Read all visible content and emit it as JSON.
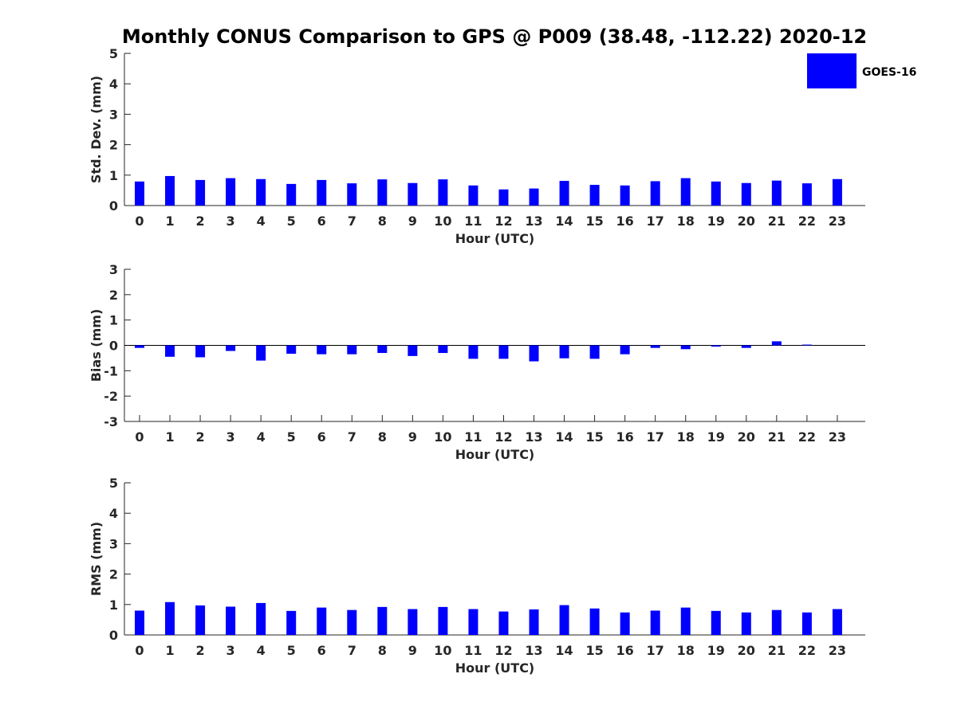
{
  "title": "Monthly CONUS Comparison to GPS @ P009 (38.48, -112.22) 2020-12",
  "legend": {
    "label": "GOES-16",
    "color": "#0000ff",
    "placement": "top-right"
  },
  "chart_data": [
    {
      "type": "bar",
      "xlabel": "Hour (UTC)",
      "ylabel": "Std. Dev. (mm)",
      "ylim": [
        0,
        5
      ],
      "yticks": [
        "0",
        "1",
        "2",
        "3",
        "4",
        "5"
      ],
      "categories": [
        "0",
        "1",
        "2",
        "3",
        "4",
        "5",
        "6",
        "7",
        "8",
        "9",
        "10",
        "11",
        "12",
        "13",
        "14",
        "15",
        "16",
        "17",
        "18",
        "19",
        "20",
        "21",
        "22",
        "23"
      ],
      "series": [
        {
          "name": "GOES-16",
          "color": "#0000ff",
          "values": [
            0.79,
            0.97,
            0.84,
            0.9,
            0.87,
            0.71,
            0.84,
            0.73,
            0.86,
            0.74,
            0.86,
            0.66,
            0.53,
            0.56,
            0.81,
            0.68,
            0.66,
            0.8,
            0.9,
            0.79,
            0.74,
            0.82,
            0.73,
            0.87
          ]
        }
      ]
    },
    {
      "type": "bar",
      "xlabel": "Hour (UTC)",
      "ylabel": "Bias (mm)",
      "ylim": [
        -3,
        3
      ],
      "yticks": [
        "-3",
        "-2",
        "-1",
        "0",
        "1",
        "2",
        "3"
      ],
      "categories": [
        "0",
        "1",
        "2",
        "3",
        "4",
        "5",
        "6",
        "7",
        "8",
        "9",
        "10",
        "11",
        "12",
        "13",
        "14",
        "15",
        "16",
        "17",
        "18",
        "19",
        "20",
        "21",
        "22",
        "23"
      ],
      "series": [
        {
          "name": "GOES-16",
          "color": "#0000ff",
          "values": [
            -0.1,
            -0.45,
            -0.47,
            -0.22,
            -0.6,
            -0.33,
            -0.35,
            -0.35,
            -0.3,
            -0.42,
            -0.3,
            -0.53,
            -0.53,
            -0.63,
            -0.51,
            -0.53,
            -0.35,
            -0.1,
            -0.15,
            -0.05,
            -0.1,
            0.16,
            0.03,
            0.0
          ]
        }
      ]
    },
    {
      "type": "bar",
      "xlabel": "Hour (UTC)",
      "ylabel": "RMS (mm)",
      "ylim": [
        0,
        5
      ],
      "yticks": [
        "0",
        "1",
        "2",
        "3",
        "4",
        "5"
      ],
      "categories": [
        "0",
        "1",
        "2",
        "3",
        "4",
        "5",
        "6",
        "7",
        "8",
        "9",
        "10",
        "11",
        "12",
        "13",
        "14",
        "15",
        "16",
        "17",
        "18",
        "19",
        "20",
        "21",
        "22",
        "23"
      ],
      "series": [
        {
          "name": "GOES-16",
          "color": "#0000ff",
          "values": [
            0.8,
            1.08,
            0.97,
            0.93,
            1.05,
            0.79,
            0.9,
            0.82,
            0.92,
            0.85,
            0.92,
            0.85,
            0.77,
            0.84,
            0.98,
            0.87,
            0.74,
            0.8,
            0.9,
            0.79,
            0.74,
            0.82,
            0.74,
            0.85
          ]
        }
      ]
    }
  ]
}
